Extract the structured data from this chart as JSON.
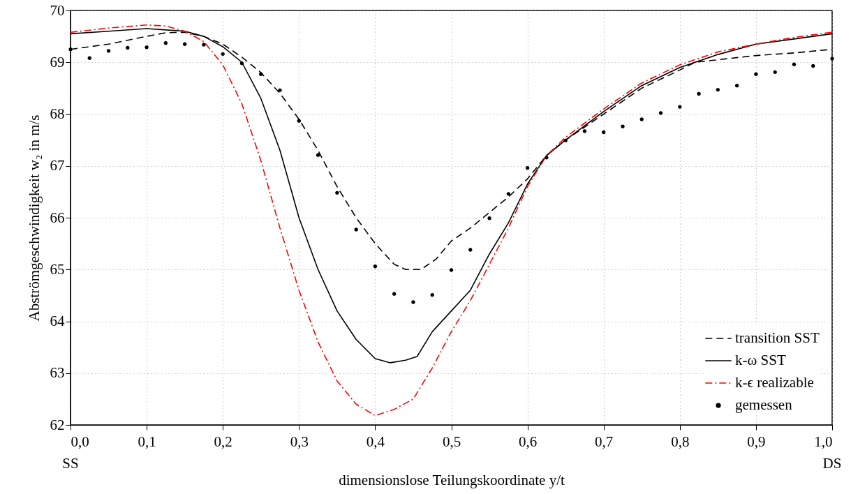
{
  "chart_data": {
    "type": "line",
    "xlabel": "dimensionslose Teilungskoordinate y/t",
    "ylabel": "Abströmgeschwindigkeit w₂ in m/s",
    "annotations": [
      "SS",
      "DS"
    ],
    "xlim": [
      0,
      1
    ],
    "ylim": [
      62,
      70
    ],
    "xticks": [
      {
        "value": 0,
        "label": "0,0"
      },
      {
        "value": 0.1,
        "label": "0,1"
      },
      {
        "value": 0.2,
        "label": "0,2"
      },
      {
        "value": 0.3,
        "label": "0,3"
      },
      {
        "value": 0.4,
        "label": "0,4"
      },
      {
        "value": 0.5,
        "label": "0,5"
      },
      {
        "value": 0.6,
        "label": "0,6"
      },
      {
        "value": 0.7,
        "label": "0,7"
      },
      {
        "value": 0.8,
        "label": "0,8"
      },
      {
        "value": 0.9,
        "label": "0,9"
      },
      {
        "value": 1,
        "label": "1,0"
      }
    ],
    "yticks": [
      62,
      63,
      64,
      65,
      66,
      67,
      68,
      69,
      70
    ],
    "grid": true,
    "legend": "bottom right",
    "series": [
      {
        "name": "transition SST",
        "color": "#000000",
        "line_style": "dashed",
        "x": [
          0,
          0.05,
          0.1,
          0.125,
          0.15,
          0.175,
          0.2,
          0.225,
          0.25,
          0.275,
          0.3,
          0.325,
          0.35,
          0.375,
          0.4,
          0.425,
          0.44,
          0.46,
          0.48,
          0.5,
          0.525,
          0.55,
          0.575,
          0.6,
          0.625,
          0.65,
          0.7,
          0.75,
          0.8,
          0.82,
          0.9,
          0.95,
          1
        ],
        "values": [
          69.25,
          69.35,
          69.5,
          69.57,
          69.58,
          69.5,
          69.35,
          69.1,
          68.8,
          68.4,
          67.9,
          67.3,
          66.6,
          66.0,
          65.5,
          65.1,
          65.0,
          65.0,
          65.2,
          65.55,
          65.8,
          66.1,
          66.4,
          66.75,
          67.2,
          67.5,
          68.0,
          68.5,
          68.85,
          69.0,
          69.13,
          69.18,
          69.25
        ]
      },
      {
        "name": "k-ω SST",
        "color": "#000000",
        "line_style": "solid",
        "x": [
          0,
          0.05,
          0.1,
          0.15,
          0.175,
          0.2,
          0.225,
          0.25,
          0.275,
          0.3,
          0.325,
          0.35,
          0.375,
          0.4,
          0.42,
          0.44,
          0.455,
          0.475,
          0.5,
          0.525,
          0.55,
          0.575,
          0.6,
          0.625,
          0.65,
          0.7,
          0.75,
          0.8,
          0.85,
          0.9,
          0.95,
          1
        ],
        "values": [
          69.55,
          69.6,
          69.65,
          69.6,
          69.5,
          69.3,
          69.0,
          68.3,
          67.3,
          66.0,
          65.0,
          64.2,
          63.65,
          63.28,
          63.2,
          63.25,
          63.32,
          63.8,
          64.2,
          64.6,
          65.3,
          65.9,
          66.65,
          67.2,
          67.5,
          68.05,
          68.55,
          68.9,
          69.15,
          69.35,
          69.45,
          69.55
        ]
      },
      {
        "name": "k-ϵ realizable",
        "color": "#ff0000",
        "line_style": "dashdot",
        "x": [
          0,
          0.05,
          0.1,
          0.125,
          0.15,
          0.175,
          0.2,
          0.225,
          0.25,
          0.275,
          0.3,
          0.325,
          0.35,
          0.375,
          0.4,
          0.425,
          0.45,
          0.475,
          0.5,
          0.525,
          0.55,
          0.575,
          0.6,
          0.625,
          0.65,
          0.7,
          0.75,
          0.8,
          0.85,
          0.9,
          0.95,
          1
        ],
        "values": [
          69.58,
          69.66,
          69.72,
          69.7,
          69.6,
          69.4,
          68.95,
          68.2,
          67.1,
          65.8,
          64.6,
          63.6,
          62.85,
          62.4,
          62.18,
          62.3,
          62.5,
          63.1,
          63.8,
          64.4,
          65.1,
          65.8,
          66.6,
          67.2,
          67.55,
          68.1,
          68.6,
          68.95,
          69.2,
          69.35,
          69.48,
          69.58
        ]
      },
      {
        "name": "gemessen",
        "type": "scatter",
        "color": "#000000",
        "marker": "circle",
        "x": [
          0,
          0.025,
          0.05,
          0.075,
          0.1,
          0.125,
          0.15,
          0.175,
          0.2,
          0.225,
          0.25,
          0.275,
          0.3,
          0.325,
          0.35,
          0.375,
          0.4,
          0.425,
          0.45,
          0.475,
          0.5,
          0.525,
          0.55,
          0.575,
          0.6,
          0.625,
          0.65,
          0.675,
          0.7,
          0.725,
          0.75,
          0.775,
          0.8,
          0.825,
          0.85,
          0.875,
          0.9,
          0.925,
          0.95,
          0.975,
          1
        ],
        "values": [
          69.25,
          69.08,
          69.22,
          69.28,
          69.29,
          69.37,
          69.35,
          69.34,
          69.16,
          68.98,
          68.77,
          68.46,
          67.87,
          67.21,
          66.48,
          65.77,
          65.06,
          64.53,
          64.37,
          64.51,
          64.99,
          65.38,
          65.99,
          66.46,
          66.96,
          67.16,
          67.49,
          67.67,
          67.65,
          67.76,
          67.9,
          68.02,
          68.14,
          68.39,
          68.47,
          68.55,
          68.77,
          68.81,
          68.96,
          68.93,
          69.07
        ]
      }
    ]
  }
}
